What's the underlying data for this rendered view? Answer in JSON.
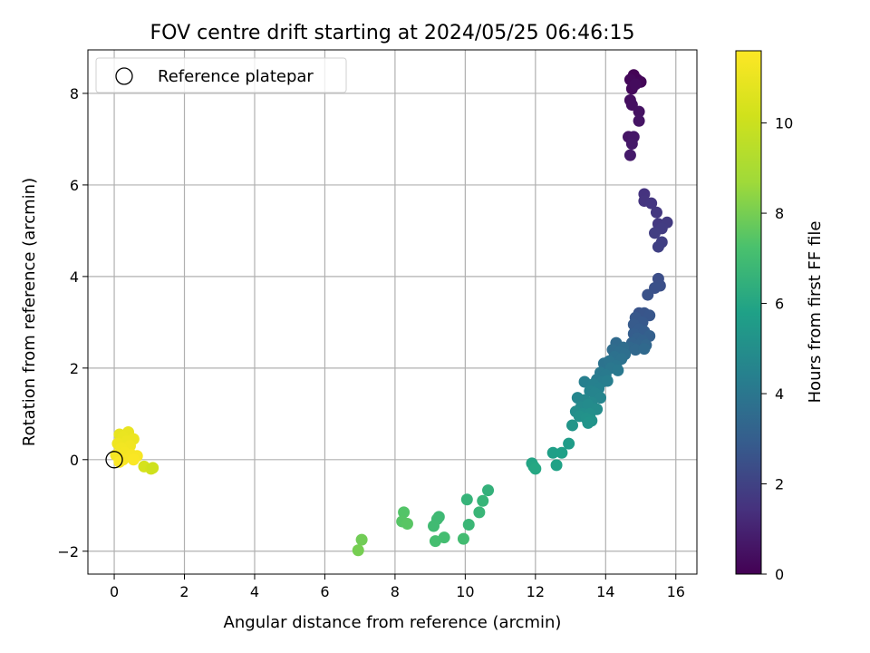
{
  "chart_data": {
    "type": "scatter",
    "title": "FOV centre drift starting at 2024/05/25 06:46:15",
    "xlabel": "Angular distance from reference (arcmin)",
    "ylabel": "Rotation from reference (arcmin)",
    "xlim": [
      -0.75,
      16.6
    ],
    "ylim": [
      -2.5,
      8.95
    ],
    "xticks": [
      0,
      2,
      4,
      6,
      8,
      10,
      12,
      14,
      16
    ],
    "yticks": [
      -2,
      0,
      2,
      4,
      6,
      8
    ],
    "xtick_labels": [
      "0",
      "2",
      "4",
      "6",
      "8",
      "10",
      "12",
      "14",
      "16"
    ],
    "ytick_labels": [
      "−2",
      "0",
      "2",
      "4",
      "6",
      "8"
    ],
    "grid": true,
    "legend": {
      "placement": "upper-left",
      "entries": [
        "Reference platepar"
      ]
    },
    "reference_point": {
      "x": 0,
      "y": 0,
      "label": "Reference platepar"
    },
    "colorbar": {
      "label": "Hours from first FF file",
      "colormap": "viridis",
      "range": [
        0,
        11.6
      ],
      "ticks": [
        0,
        2,
        4,
        6,
        8,
        10
      ],
      "tick_labels": [
        "0",
        "2",
        "4",
        "6",
        "8",
        "10"
      ]
    },
    "colors": {
      "grid": "#b0b0b0",
      "axes": "#000000",
      "reference_marker": "#000000"
    },
    "points": [
      {
        "x": 14.8,
        "y": 8.4,
        "c": 0.05
      },
      {
        "x": 14.9,
        "y": 8.3,
        "c": 0.1
      },
      {
        "x": 15.0,
        "y": 8.25,
        "c": 0.15
      },
      {
        "x": 14.7,
        "y": 8.3,
        "c": 0.2
      },
      {
        "x": 14.75,
        "y": 8.1,
        "c": 0.25
      },
      {
        "x": 14.85,
        "y": 8.2,
        "c": 0.3
      },
      {
        "x": 14.7,
        "y": 7.85,
        "c": 0.4
      },
      {
        "x": 14.75,
        "y": 7.75,
        "c": 0.45
      },
      {
        "x": 14.95,
        "y": 7.6,
        "c": 0.5
      },
      {
        "x": 14.95,
        "y": 7.4,
        "c": 0.55
      },
      {
        "x": 14.65,
        "y": 7.05,
        "c": 0.6
      },
      {
        "x": 14.8,
        "y": 7.05,
        "c": 0.65
      },
      {
        "x": 14.75,
        "y": 6.9,
        "c": 0.7
      },
      {
        "x": 14.7,
        "y": 6.65,
        "c": 0.75
      },
      {
        "x": 15.1,
        "y": 5.8,
        "c": 1.5
      },
      {
        "x": 15.1,
        "y": 5.65,
        "c": 1.55
      },
      {
        "x": 15.3,
        "y": 5.6,
        "c": 1.6
      },
      {
        "x": 15.45,
        "y": 5.4,
        "c": 1.65
      },
      {
        "x": 15.5,
        "y": 5.15,
        "c": 1.7
      },
      {
        "x": 15.75,
        "y": 5.18,
        "c": 1.75
      },
      {
        "x": 15.6,
        "y": 5.05,
        "c": 1.8
      },
      {
        "x": 15.4,
        "y": 4.95,
        "c": 1.85
      },
      {
        "x": 15.6,
        "y": 4.75,
        "c": 1.9
      },
      {
        "x": 15.5,
        "y": 4.65,
        "c": 1.95
      },
      {
        "x": 15.5,
        "y": 3.95,
        "c": 2.4
      },
      {
        "x": 15.55,
        "y": 3.8,
        "c": 2.45
      },
      {
        "x": 15.4,
        "y": 3.75,
        "c": 2.5
      },
      {
        "x": 15.2,
        "y": 3.6,
        "c": 2.55
      },
      {
        "x": 14.95,
        "y": 3.2,
        "c": 2.6
      },
      {
        "x": 15.1,
        "y": 3.2,
        "c": 2.65
      },
      {
        "x": 15.25,
        "y": 3.15,
        "c": 2.7
      },
      {
        "x": 14.85,
        "y": 3.1,
        "c": 2.75
      },
      {
        "x": 15.05,
        "y": 3.0,
        "c": 2.8
      },
      {
        "x": 14.8,
        "y": 2.95,
        "c": 2.85
      },
      {
        "x": 14.95,
        "y": 2.85,
        "c": 2.9
      },
      {
        "x": 15.1,
        "y": 2.8,
        "c": 2.95
      },
      {
        "x": 14.8,
        "y": 2.75,
        "c": 3.0
      },
      {
        "x": 15.25,
        "y": 2.7,
        "c": 3.05
      },
      {
        "x": 14.9,
        "y": 2.65,
        "c": 3.1
      },
      {
        "x": 15.05,
        "y": 2.6,
        "c": 3.15
      },
      {
        "x": 14.75,
        "y": 2.55,
        "c": 3.2
      },
      {
        "x": 14.95,
        "y": 2.5,
        "c": 3.25
      },
      {
        "x": 15.15,
        "y": 2.5,
        "c": 3.3
      },
      {
        "x": 14.7,
        "y": 2.45,
        "c": 3.35
      },
      {
        "x": 14.85,
        "y": 2.4,
        "c": 3.4
      },
      {
        "x": 15.1,
        "y": 2.42,
        "c": 3.45
      },
      {
        "x": 14.3,
        "y": 2.55,
        "c": 3.5
      },
      {
        "x": 14.5,
        "y": 2.45,
        "c": 3.55
      },
      {
        "x": 14.2,
        "y": 2.4,
        "c": 3.6
      },
      {
        "x": 14.4,
        "y": 2.35,
        "c": 3.65
      },
      {
        "x": 14.55,
        "y": 2.3,
        "c": 3.7
      },
      {
        "x": 14.25,
        "y": 2.25,
        "c": 3.75
      },
      {
        "x": 14.45,
        "y": 2.2,
        "c": 3.8
      },
      {
        "x": 13.95,
        "y": 2.1,
        "c": 3.85
      },
      {
        "x": 14.1,
        "y": 2.15,
        "c": 3.9
      },
      {
        "x": 14.3,
        "y": 2.05,
        "c": 3.95
      },
      {
        "x": 14.15,
        "y": 2.0,
        "c": 4.0
      },
      {
        "x": 14.35,
        "y": 1.95,
        "c": 4.05
      },
      {
        "x": 13.85,
        "y": 1.9,
        "c": 4.1
      },
      {
        "x": 14.0,
        "y": 1.85,
        "c": 4.15
      },
      {
        "x": 13.75,
        "y": 1.75,
        "c": 4.2
      },
      {
        "x": 13.9,
        "y": 1.7,
        "c": 4.25
      },
      {
        "x": 14.05,
        "y": 1.72,
        "c": 4.3
      },
      {
        "x": 13.4,
        "y": 1.7,
        "c": 4.35
      },
      {
        "x": 13.65,
        "y": 1.65,
        "c": 4.4
      },
      {
        "x": 13.8,
        "y": 1.55,
        "c": 4.45
      },
      {
        "x": 13.55,
        "y": 1.5,
        "c": 4.5
      },
      {
        "x": 13.7,
        "y": 1.45,
        "c": 4.55
      },
      {
        "x": 13.85,
        "y": 1.35,
        "c": 4.6
      },
      {
        "x": 13.2,
        "y": 1.35,
        "c": 4.65
      },
      {
        "x": 13.4,
        "y": 1.3,
        "c": 4.7
      },
      {
        "x": 13.6,
        "y": 1.25,
        "c": 4.75
      },
      {
        "x": 13.3,
        "y": 1.15,
        "c": 4.8
      },
      {
        "x": 13.5,
        "y": 1.2,
        "c": 4.85
      },
      {
        "x": 13.75,
        "y": 1.1,
        "c": 4.9
      },
      {
        "x": 13.15,
        "y": 1.05,
        "c": 4.95
      },
      {
        "x": 13.35,
        "y": 1.0,
        "c": 5.0
      },
      {
        "x": 13.55,
        "y": 1.0,
        "c": 5.05
      },
      {
        "x": 13.25,
        "y": 0.95,
        "c": 5.1
      },
      {
        "x": 13.45,
        "y": 0.9,
        "c": 5.15
      },
      {
        "x": 13.6,
        "y": 0.85,
        "c": 5.2
      },
      {
        "x": 13.5,
        "y": 0.8,
        "c": 5.25
      },
      {
        "x": 13.05,
        "y": 0.75,
        "c": 5.3
      },
      {
        "x": 12.95,
        "y": 0.35,
        "c": 5.6
      },
      {
        "x": 12.5,
        "y": 0.15,
        "c": 5.7
      },
      {
        "x": 12.75,
        "y": 0.15,
        "c": 5.75
      },
      {
        "x": 12.6,
        "y": -0.12,
        "c": 5.85
      },
      {
        "x": 11.9,
        "y": -0.08,
        "c": 5.95
      },
      {
        "x": 11.95,
        "y": -0.15,
        "c": 6.0
      },
      {
        "x": 12.0,
        "y": -0.2,
        "c": 6.05
      },
      {
        "x": 10.65,
        "y": -0.67,
        "c": 6.5
      },
      {
        "x": 10.05,
        "y": -0.87,
        "c": 6.6
      },
      {
        "x": 10.5,
        "y": -0.9,
        "c": 6.65
      },
      {
        "x": 10.4,
        "y": -1.15,
        "c": 6.7
      },
      {
        "x": 10.1,
        "y": -1.42,
        "c": 6.75
      },
      {
        "x": 9.25,
        "y": -1.25,
        "c": 6.85
      },
      {
        "x": 9.2,
        "y": -1.3,
        "c": 6.9
      },
      {
        "x": 9.1,
        "y": -1.45,
        "c": 6.95
      },
      {
        "x": 9.95,
        "y": -1.73,
        "c": 7.0
      },
      {
        "x": 9.4,
        "y": -1.7,
        "c": 7.05
      },
      {
        "x": 9.15,
        "y": -1.78,
        "c": 7.1
      },
      {
        "x": 8.25,
        "y": -1.15,
        "c": 7.4
      },
      {
        "x": 8.2,
        "y": -1.35,
        "c": 7.45
      },
      {
        "x": 8.35,
        "y": -1.4,
        "c": 7.5
      },
      {
        "x": 7.05,
        "y": -1.75,
        "c": 7.9
      },
      {
        "x": 6.95,
        "y": -1.98,
        "c": 8.0
      },
      {
        "x": 0.15,
        "y": 0.55,
        "c": 10.9
      },
      {
        "x": 0.4,
        "y": 0.6,
        "c": 10.95
      },
      {
        "x": 0.25,
        "y": 0.5,
        "c": 11.0
      },
      {
        "x": 0.55,
        "y": 0.45,
        "c": 11.05
      },
      {
        "x": 0.35,
        "y": 0.4,
        "c": 11.1
      },
      {
        "x": 0.1,
        "y": 0.35,
        "c": 11.15
      },
      {
        "x": 0.45,
        "y": 0.3,
        "c": 11.2
      },
      {
        "x": 0.2,
        "y": 0.25,
        "c": 11.25
      },
      {
        "x": 0.3,
        "y": 0.15,
        "c": 11.3
      },
      {
        "x": 0.05,
        "y": 0.1,
        "c": 11.35
      },
      {
        "x": 0.5,
        "y": 0.1,
        "c": 11.4
      },
      {
        "x": 0.65,
        "y": 0.08,
        "c": 11.42
      },
      {
        "x": 0.25,
        "y": 0.0,
        "c": 11.45
      },
      {
        "x": 0.55,
        "y": 0.0,
        "c": 11.5
      },
      {
        "x": 0.15,
        "y": -0.05,
        "c": 11.52
      },
      {
        "x": 0.85,
        "y": -0.15,
        "c": 10.3
      },
      {
        "x": 1.05,
        "y": -0.2,
        "c": 10.2
      },
      {
        "x": 1.1,
        "y": -0.18,
        "c": 10.1
      }
    ]
  }
}
